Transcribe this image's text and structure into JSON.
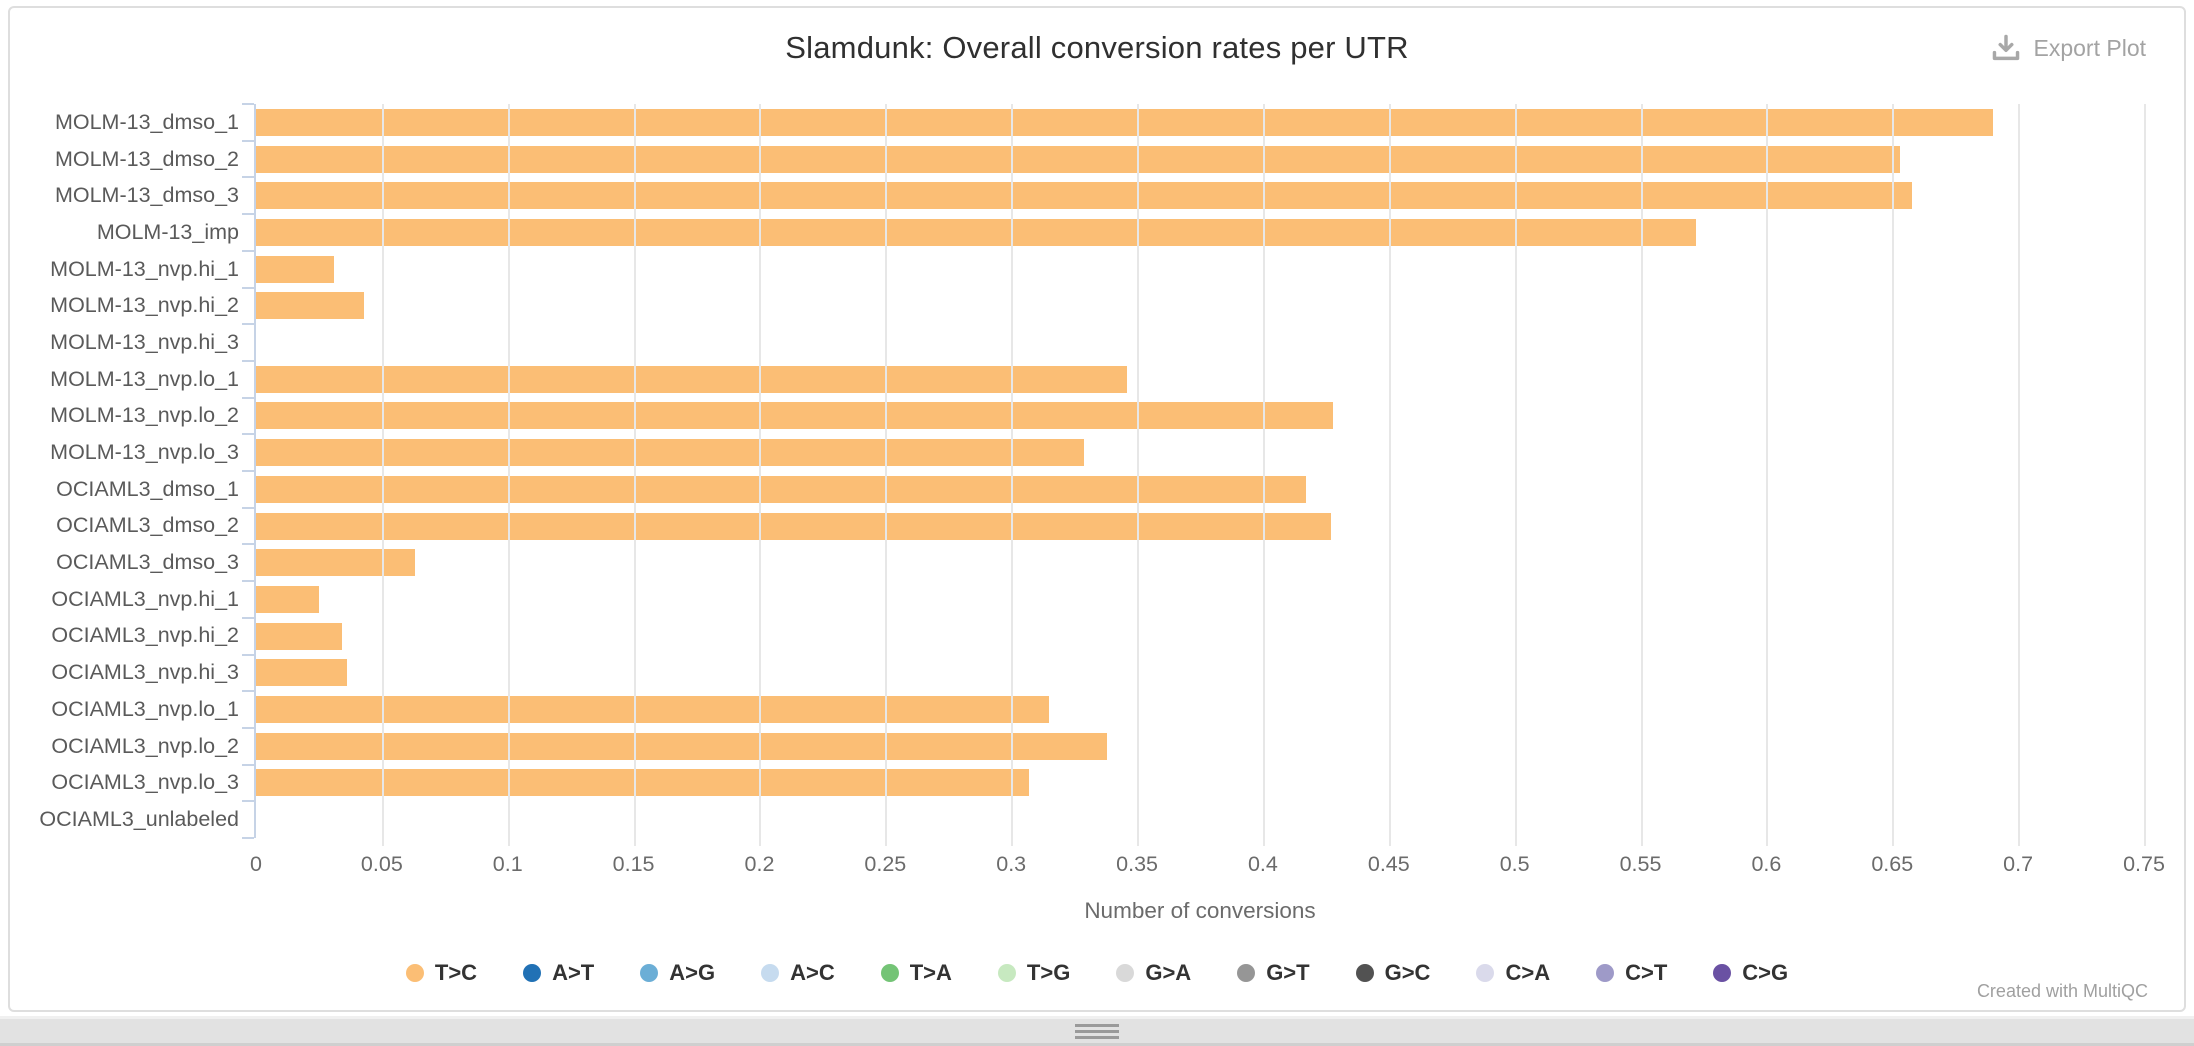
{
  "toolbar": {
    "export_label": "Export Plot"
  },
  "footer": {
    "credit": "Created with MultiQC"
  },
  "colors": {
    "bar": "#fbbe75",
    "axis_line": "#c6d3e6",
    "gridline": "#e7e7e7",
    "title_text": "#303030",
    "muted_text": "#a3a3a3"
  },
  "chart_data": {
    "type": "bar",
    "orientation": "horizontal",
    "title": "Slamdunk: Overall conversion rates per UTR",
    "xlabel": "Number of conversions",
    "ylabel": "",
    "xlim": [
      0,
      0.75
    ],
    "grid": true,
    "legend_position": "bottom",
    "x_tick_values": [
      0,
      0.05,
      0.1,
      0.15,
      0.2,
      0.25,
      0.3,
      0.35,
      0.4,
      0.45,
      0.5,
      0.55,
      0.6,
      0.65,
      0.7,
      0.75
    ],
    "x_tick_labels": [
      "0",
      "0.05",
      "0.1",
      "0.15",
      "0.2",
      "0.25",
      "0.3",
      "0.35",
      "0.4",
      "0.45",
      "0.5",
      "0.55",
      "0.6",
      "0.65",
      "0.7",
      "0.75"
    ],
    "categories": [
      "MOLM-13_dmso_1",
      "MOLM-13_dmso_2",
      "MOLM-13_dmso_3",
      "MOLM-13_imp",
      "MOLM-13_nvp.hi_1",
      "MOLM-13_nvp.hi_2",
      "MOLM-13_nvp.hi_3",
      "MOLM-13_nvp.lo_1",
      "MOLM-13_nvp.lo_2",
      "MOLM-13_nvp.lo_3",
      "OCIAML3_dmso_1",
      "OCIAML3_dmso_2",
      "OCIAML3_dmso_3",
      "OCIAML3_nvp.hi_1",
      "OCIAML3_nvp.hi_2",
      "OCIAML3_nvp.hi_3",
      "OCIAML3_nvp.lo_1",
      "OCIAML3_nvp.lo_2",
      "OCIAML3_nvp.lo_3",
      "OCIAML3_unlabeled"
    ],
    "series": [
      {
        "name": "T>C",
        "color": "#fbbe75",
        "values": [
          0.69,
          0.653,
          0.658,
          0.572,
          0.031,
          0.043,
          0.0,
          0.346,
          0.428,
          0.329,
          0.417,
          0.427,
          0.063,
          0.025,
          0.034,
          0.036,
          0.315,
          0.338,
          0.307,
          0.0
        ]
      }
    ],
    "legend": [
      {
        "label": "T>C",
        "color": "#fbbe75"
      },
      {
        "label": "A>T",
        "color": "#2171b5"
      },
      {
        "label": "A>G",
        "color": "#6baed6"
      },
      {
        "label": "A>C",
        "color": "#c6dbef"
      },
      {
        "label": "T>A",
        "color": "#74c476"
      },
      {
        "label": "T>G",
        "color": "#c7e9c0"
      },
      {
        "label": "G>A",
        "color": "#d9d9d9"
      },
      {
        "label": "G>T",
        "color": "#969696"
      },
      {
        "label": "G>C",
        "color": "#525252"
      },
      {
        "label": "C>A",
        "color": "#dadaeb"
      },
      {
        "label": "C>T",
        "color": "#9e9ac8"
      },
      {
        "label": "C>G",
        "color": "#6a51a3"
      }
    ]
  }
}
